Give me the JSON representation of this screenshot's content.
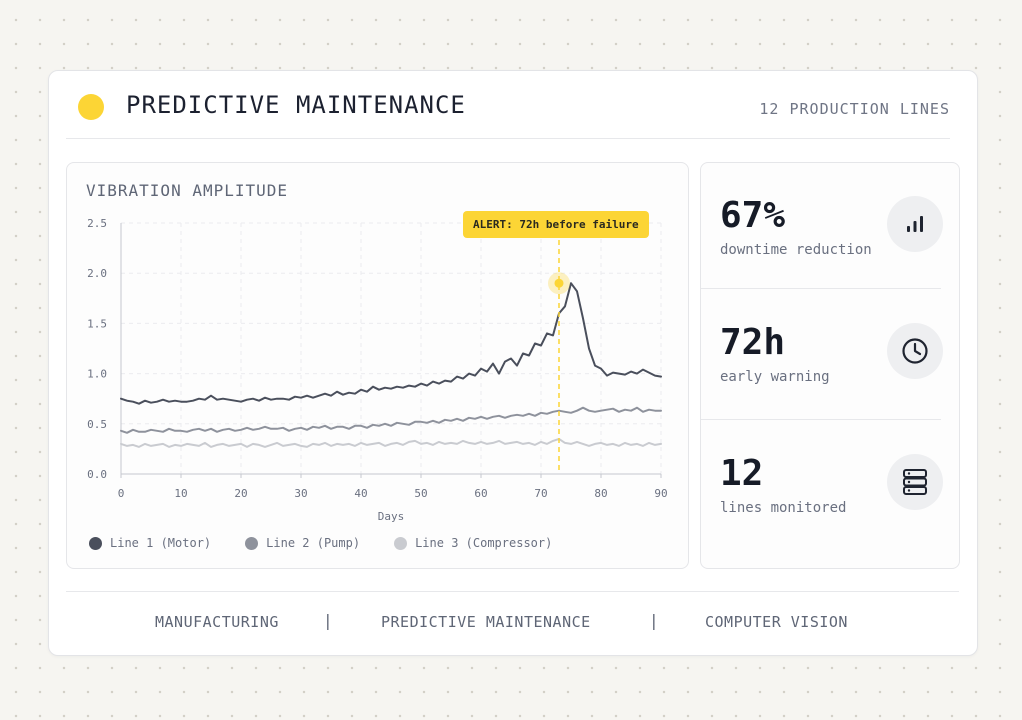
{
  "header": {
    "title": "PREDICTIVE MAINTENANCE",
    "subtitle": "12 PRODUCTION LINES"
  },
  "panel": {
    "title": "VIBRATION AMPLITUDE",
    "alert": "ALERT: 72h before failure"
  },
  "stats": [
    {
      "value": "67%",
      "label": "downtime reduction",
      "icon": "bar-chart-icon"
    },
    {
      "value": "72h",
      "label": "early warning",
      "icon": "clock-icon"
    },
    {
      "value": "12",
      "label": "lines monitored",
      "icon": "server-icon"
    }
  ],
  "footer": {
    "tags": [
      "MANUFACTURING",
      "PREDICTIVE MAINTENANCE",
      "COMPUTER VISION"
    ],
    "separator": "|"
  },
  "colors": {
    "accent": "#fcd535",
    "line1": "#4a4f5c",
    "line2": "#8e929c",
    "line3": "#c9cbd0"
  },
  "chart_data": {
    "type": "line",
    "xlabel": "Days",
    "ylabel": "",
    "xlim": [
      0,
      90
    ],
    "ylim": [
      0,
      2.5
    ],
    "xticks": [
      "0",
      "10",
      "20",
      "30",
      "40",
      "50",
      "60",
      "70",
      "80",
      "90"
    ],
    "yticks": [
      "0.0",
      "0.5",
      "1.0",
      "1.5",
      "2.0",
      "2.5"
    ],
    "grid": true,
    "legend": "bottom-left",
    "annotation": {
      "x": 73,
      "y": 1.9,
      "text": "ALERT: 72h before failure"
    },
    "x": [
      0,
      1,
      2,
      3,
      4,
      5,
      6,
      7,
      8,
      9,
      10,
      11,
      12,
      13,
      14,
      15,
      16,
      17,
      18,
      19,
      20,
      21,
      22,
      23,
      24,
      25,
      26,
      27,
      28,
      29,
      30,
      31,
      32,
      33,
      34,
      35,
      36,
      37,
      38,
      39,
      40,
      41,
      42,
      43,
      44,
      45,
      46,
      47,
      48,
      49,
      50,
      51,
      52,
      53,
      54,
      55,
      56,
      57,
      58,
      59,
      60,
      61,
      62,
      63,
      64,
      65,
      66,
      67,
      68,
      69,
      70,
      71,
      72,
      73,
      74,
      75,
      76,
      77,
      78,
      79,
      80,
      81,
      82,
      83,
      84,
      85,
      86,
      87,
      88,
      89,
      90
    ],
    "series": [
      {
        "name": "Line 1 (Motor)",
        "values": [
          0.75,
          0.73,
          0.72,
          0.7,
          0.73,
          0.71,
          0.72,
          0.74,
          0.72,
          0.73,
          0.72,
          0.72,
          0.73,
          0.75,
          0.74,
          0.78,
          0.74,
          0.75,
          0.74,
          0.73,
          0.72,
          0.74,
          0.75,
          0.73,
          0.76,
          0.74,
          0.75,
          0.75,
          0.74,
          0.77,
          0.76,
          0.78,
          0.76,
          0.78,
          0.8,
          0.78,
          0.82,
          0.79,
          0.81,
          0.8,
          0.84,
          0.82,
          0.87,
          0.84,
          0.86,
          0.85,
          0.87,
          0.86,
          0.88,
          0.87,
          0.9,
          0.88,
          0.92,
          0.9,
          0.93,
          0.92,
          0.97,
          0.95,
          1.0,
          0.98,
          1.05,
          1.02,
          1.1,
          1.0,
          1.12,
          1.15,
          1.08,
          1.2,
          1.18,
          1.3,
          1.28,
          1.4,
          1.38,
          1.6,
          1.67,
          1.9,
          1.82,
          1.55,
          1.25,
          1.08,
          1.05,
          0.98,
          1.01,
          1.0,
          0.99,
          1.02,
          1.0,
          1.04,
          1.01,
          0.98,
          0.97
        ],
        "color": "#4a4f5c"
      },
      {
        "name": "Line 2 (Pump)",
        "values": [
          0.43,
          0.41,
          0.44,
          0.42,
          0.42,
          0.44,
          0.43,
          0.42,
          0.45,
          0.43,
          0.43,
          0.42,
          0.44,
          0.45,
          0.43,
          0.45,
          0.42,
          0.44,
          0.45,
          0.43,
          0.44,
          0.46,
          0.44,
          0.45,
          0.47,
          0.45,
          0.45,
          0.46,
          0.43,
          0.45,
          0.46,
          0.44,
          0.47,
          0.46,
          0.48,
          0.45,
          0.47,
          0.47,
          0.45,
          0.48,
          0.48,
          0.46,
          0.49,
          0.48,
          0.5,
          0.48,
          0.51,
          0.5,
          0.49,
          0.52,
          0.52,
          0.51,
          0.53,
          0.51,
          0.54,
          0.53,
          0.55,
          0.53,
          0.56,
          0.55,
          0.57,
          0.55,
          0.57,
          0.58,
          0.56,
          0.58,
          0.59,
          0.58,
          0.6,
          0.58,
          0.61,
          0.6,
          0.62,
          0.63,
          0.62,
          0.61,
          0.63,
          0.66,
          0.63,
          0.62,
          0.63,
          0.64,
          0.65,
          0.62,
          0.64,
          0.63,
          0.66,
          0.62,
          0.64,
          0.63,
          0.63
        ],
        "color": "#8e929c"
      },
      {
        "name": "Line 3 (Compressor)",
        "values": [
          0.3,
          0.28,
          0.29,
          0.27,
          0.3,
          0.28,
          0.29,
          0.3,
          0.27,
          0.29,
          0.28,
          0.3,
          0.29,
          0.28,
          0.31,
          0.27,
          0.29,
          0.3,
          0.28,
          0.29,
          0.3,
          0.27,
          0.3,
          0.29,
          0.27,
          0.29,
          0.31,
          0.28,
          0.29,
          0.3,
          0.28,
          0.27,
          0.3,
          0.29,
          0.31,
          0.28,
          0.3,
          0.29,
          0.3,
          0.28,
          0.31,
          0.29,
          0.3,
          0.31,
          0.28,
          0.3,
          0.31,
          0.29,
          0.32,
          0.33,
          0.3,
          0.31,
          0.29,
          0.32,
          0.3,
          0.31,
          0.3,
          0.33,
          0.31,
          0.3,
          0.32,
          0.3,
          0.31,
          0.33,
          0.3,
          0.31,
          0.32,
          0.3,
          0.31,
          0.29,
          0.32,
          0.3,
          0.33,
          0.35,
          0.31,
          0.3,
          0.32,
          0.3,
          0.28,
          0.3,
          0.31,
          0.29,
          0.3,
          0.28,
          0.31,
          0.29,
          0.3,
          0.28,
          0.31,
          0.29,
          0.3
        ],
        "color": "#c9cbd0"
      }
    ]
  }
}
